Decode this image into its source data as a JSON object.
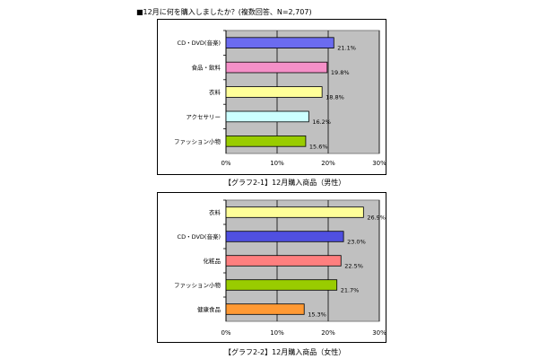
{
  "header": {
    "title": "■12月に何を購入しましたか？(複数回答、N=2,707)"
  },
  "captions": [
    "【グラフ2-1】12月購入商品（男性）",
    "【グラフ2-2】12月購入商品（女性）"
  ],
  "chart_data": [
    {
      "type": "bar",
      "orientation": "horizontal",
      "title": "【グラフ2-1】12月購入商品（男性）",
      "categories": [
        "CD・DVD(音楽)",
        "食品・飲料",
        "衣料",
        "アクセサリー",
        "ファッション小物"
      ],
      "values": [
        21.1,
        19.8,
        18.8,
        16.2,
        15.6
      ],
      "value_labels": [
        "21.1%",
        "19.8%",
        "18.8%",
        "16.2%",
        "15.6%"
      ],
      "colors": [
        "#6b6bf0",
        "#f590c8",
        "#ffff99",
        "#ccffff",
        "#99cc00"
      ],
      "xlim": [
        0,
        30
      ],
      "xticks": [
        "0%",
        "10%",
        "20%",
        "30%"
      ],
      "plot_background": "#c0c0c0",
      "grid": true
    },
    {
      "type": "bar",
      "orientation": "horizontal",
      "title": "【グラフ2-2】12月購入商品（女性）",
      "categories": [
        "衣料",
        "CD・DVD(音楽)",
        "化粧品",
        "ファッション小物",
        "健康食品"
      ],
      "values": [
        26.9,
        23.0,
        22.5,
        21.7,
        15.3
      ],
      "value_labels": [
        "26.9%",
        "23.0%",
        "22.5%",
        "21.7%",
        "15.3%"
      ],
      "colors": [
        "#ffff99",
        "#5050e0",
        "#ff7f7f",
        "#99cc00",
        "#ff9933"
      ],
      "xlim": [
        0,
        30
      ],
      "xticks": [
        "0%",
        "10%",
        "20%",
        "30%"
      ],
      "plot_background": "#c0c0c0",
      "grid": true
    }
  ]
}
